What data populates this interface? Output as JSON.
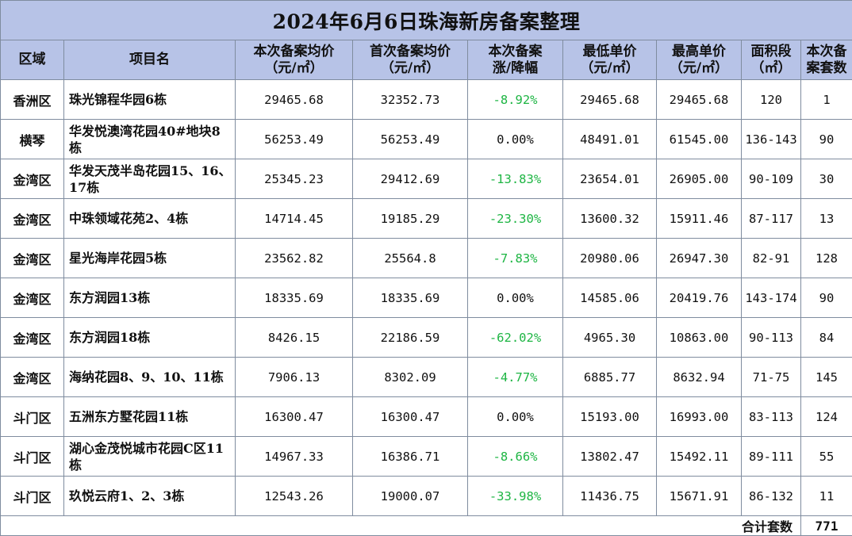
{
  "title": "2024年6月6日珠海新房备案整理",
  "headers": [
    "区域",
    "项目名",
    "本次备案均价\n（元/㎡）",
    "首次备案均价\n（元/㎡）",
    "本次备案\n涨/降幅",
    "最低单价\n（元/㎡）",
    "最高单价\n（元/㎡）",
    "面积段\n（㎡）",
    "本次备\n案套数"
  ],
  "rows": [
    {
      "district": "香洲区",
      "project": "珠光锦程华园6栋",
      "current_avg": "29465.68",
      "first_avg": "32352.73",
      "change": "-8.92%",
      "min_price": "29465.68",
      "max_price": "29465.68",
      "area": "120",
      "units": "1"
    },
    {
      "district": "横琴",
      "project": "华发悦澳湾花园40#地块8栋",
      "current_avg": "56253.49",
      "first_avg": "56253.49",
      "change": "0.00%",
      "min_price": "48491.01",
      "max_price": "61545.00",
      "area": "136-143",
      "units": "90"
    },
    {
      "district": "金湾区",
      "project": "华发天茂半岛花园15、16、17栋",
      "current_avg": "25345.23",
      "first_avg": "29412.69",
      "change": "-13.83%",
      "min_price": "23654.01",
      "max_price": "26905.00",
      "area": "90-109",
      "units": "30"
    },
    {
      "district": "金湾区",
      "project": "中珠领域花苑2、4栋",
      "current_avg": "14714.45",
      "first_avg": "19185.29",
      "change": "-23.30%",
      "min_price": "13600.32",
      "max_price": "15911.46",
      "area": "87-117",
      "units": "13"
    },
    {
      "district": "金湾区",
      "project": "星光海岸花园5栋",
      "current_avg": "23562.82",
      "first_avg": "25564.8",
      "change": "-7.83%",
      "min_price": "20980.06",
      "max_price": "26947.30",
      "area": "82-91",
      "units": "128"
    },
    {
      "district": "金湾区",
      "project": "东方润园13栋",
      "current_avg": "18335.69",
      "first_avg": "18335.69",
      "change": "0.00%",
      "min_price": "14585.06",
      "max_price": "20419.76",
      "area": "143-174",
      "units": "90"
    },
    {
      "district": "金湾区",
      "project": "东方润园18栋",
      "current_avg": "8426.15",
      "first_avg": "22186.59",
      "change": "-62.02%",
      "min_price": "4965.30",
      "max_price": "10863.00",
      "area": "90-113",
      "units": "84"
    },
    {
      "district": "金湾区",
      "project": "海纳花园8、9、10、11栋",
      "current_avg": "7906.13",
      "first_avg": "8302.09",
      "change": "-4.77%",
      "min_price": "6885.77",
      "max_price": "8632.94",
      "area": "71-75",
      "units": "145"
    },
    {
      "district": "斗门区",
      "project": "五洲东方墅花园11栋",
      "current_avg": "16300.47",
      "first_avg": "16300.47",
      "change": "0.00%",
      "min_price": "15193.00",
      "max_price": "16993.00",
      "area": "83-113",
      "units": "124"
    },
    {
      "district": "斗门区",
      "project": "湖心金茂悦城市花园C区11栋",
      "current_avg": "14967.33",
      "first_avg": "16386.71",
      "change": "-8.66%",
      "min_price": "13802.47",
      "max_price": "15492.11",
      "area": "89-111",
      "units": "55"
    },
    {
      "district": "斗门区",
      "project": "玖悦云府1、2、3栋",
      "current_avg": "12543.26",
      "first_avg": "19000.07",
      "change": "-33.98%",
      "min_price": "11436.75",
      "max_price": "15671.91",
      "area": "86-132",
      "units": "11"
    }
  ],
  "total": {
    "label": "合计套数",
    "value": "771"
  },
  "colors": {
    "header_bg": "#b7c3e7",
    "decrease": "#1db543",
    "border": "#7f8c9f"
  }
}
